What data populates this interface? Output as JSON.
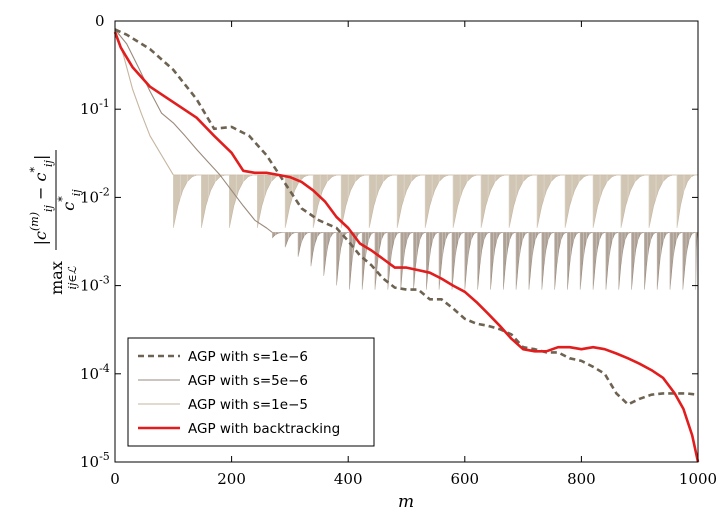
{
  "chart_data": {
    "type": "line",
    "title": "",
    "xlabel": "m",
    "ylabel": {
      "operator": "max",
      "subscript": "ij∈ℒ",
      "numerator": "|c",
      "numerator_sup": "(m)",
      "numerator_sub": "ij",
      "numerator_mid": " − c",
      "numerator_sup2": "*",
      "numerator_sub2": "ij",
      "numerator_end": "|",
      "denominator": "c",
      "denominator_sup": "*",
      "denominator_sub": "ij"
    },
    "xlim": [
      0,
      1000
    ],
    "ylim": [
      1e-05,
      1
    ],
    "yscale": "log",
    "xticks": [
      "0",
      "200",
      "400",
      "600",
      "800",
      "1000"
    ],
    "yticks": [
      {
        "base": "0",
        "exp": "",
        "value": 1
      },
      {
        "base": "10",
        "exp": "-1",
        "value": 0.1
      },
      {
        "base": "10",
        "exp": "-2",
        "value": 0.01
      },
      {
        "base": "10",
        "exp": "-3",
        "value": 0.001
      },
      {
        "base": "10",
        "exp": "-4",
        "value": 0.0001
      },
      {
        "base": "10",
        "exp": "-5",
        "value": 1e-05
      }
    ],
    "grid": false,
    "legend_position": "bottom-left",
    "series": [
      {
        "name": "AGP with s=1e−6",
        "color": "#6e6352",
        "style": "dashed",
        "x": [
          0,
          20,
          60,
          100,
          140,
          170,
          200,
          230,
          260,
          290,
          320,
          350,
          380,
          400,
          420,
          440,
          460,
          480,
          500,
          520,
          540,
          560,
          580,
          600,
          620,
          640,
          660,
          680,
          700,
          720,
          740,
          760,
          780,
          800,
          820,
          840,
          860,
          880,
          900,
          920,
          940,
          960,
          980,
          1000
        ],
        "y": [
          0.8,
          0.7,
          0.48,
          0.28,
          0.13,
          0.06,
          0.063,
          0.05,
          0.03,
          0.015,
          0.0075,
          0.0055,
          0.0045,
          0.0032,
          0.0022,
          0.0017,
          0.0012,
          0.00095,
          0.0009,
          0.0009,
          0.0007,
          0.0007,
          0.00055,
          0.00042,
          0.00037,
          0.00035,
          0.00032,
          0.00028,
          0.0002,
          0.00019,
          0.000175,
          0.000175,
          0.00015,
          0.00014,
          0.00012,
          0.0001,
          6e-05,
          4.5e-05,
          5.2e-05,
          5.8e-05,
          6e-05,
          6e-05,
          6e-05,
          5.8e-05
        ]
      },
      {
        "name": "AGP with s=5e−6",
        "color": "#9a8a7c",
        "style": "solid",
        "x": [
          0,
          20,
          40,
          60,
          80,
          100,
          120,
          140,
          160,
          180,
          200,
          220,
          240,
          260,
          270
        ],
        "y": [
          0.8,
          0.55,
          0.3,
          0.16,
          0.09,
          0.07,
          0.05,
          0.035,
          0.025,
          0.018,
          0.012,
          0.008,
          0.0055,
          0.0045,
          0.004
        ],
        "band": {
          "x_start": 270,
          "x_end": 1000,
          "upper": 0.004,
          "lower_start": 0.0035,
          "lower_end": 0.0009,
          "lower_reach_x": 390,
          "period": 22,
          "color": "#9a8a7c"
        }
      },
      {
        "name": "AGP with s=1e−5",
        "color": "#c5b6a0",
        "style": "solid",
        "x": [
          0,
          15,
          30,
          45,
          60,
          80,
          100
        ],
        "y": [
          0.8,
          0.4,
          0.17,
          0.09,
          0.05,
          0.03,
          0.018
        ],
        "band": {
          "x_start": 100,
          "x_end": 1000,
          "upper": 0.018,
          "lower": 0.0045,
          "period": 48,
          "color": "#c5b6a0"
        }
      },
      {
        "name": "AGP with backtracking",
        "color": "#e11d1d",
        "style": "solid",
        "x": [
          0,
          10,
          30,
          60,
          100,
          140,
          170,
          200,
          220,
          240,
          260,
          280,
          300,
          320,
          340,
          360,
          380,
          400,
          420,
          440,
          460,
          480,
          500,
          520,
          540,
          560,
          580,
          600,
          620,
          640,
          660,
          680,
          700,
          720,
          740,
          760,
          780,
          800,
          820,
          840,
          860,
          880,
          900,
          920,
          940,
          960,
          975,
          990,
          1000
        ],
        "y": [
          0.75,
          0.5,
          0.3,
          0.18,
          0.12,
          0.08,
          0.05,
          0.032,
          0.02,
          0.019,
          0.019,
          0.018,
          0.017,
          0.015,
          0.012,
          0.009,
          0.006,
          0.0045,
          0.003,
          0.0025,
          0.002,
          0.0016,
          0.0016,
          0.0015,
          0.0014,
          0.0012,
          0.001,
          0.00085,
          0.00065,
          0.00048,
          0.00035,
          0.00025,
          0.00019,
          0.00018,
          0.00018,
          0.0002,
          0.0002,
          0.00019,
          0.0002,
          0.00019,
          0.00017,
          0.00015,
          0.00013,
          0.00011,
          9e-05,
          6e-05,
          4e-05,
          2e-05,
          1e-05
        ]
      }
    ]
  }
}
